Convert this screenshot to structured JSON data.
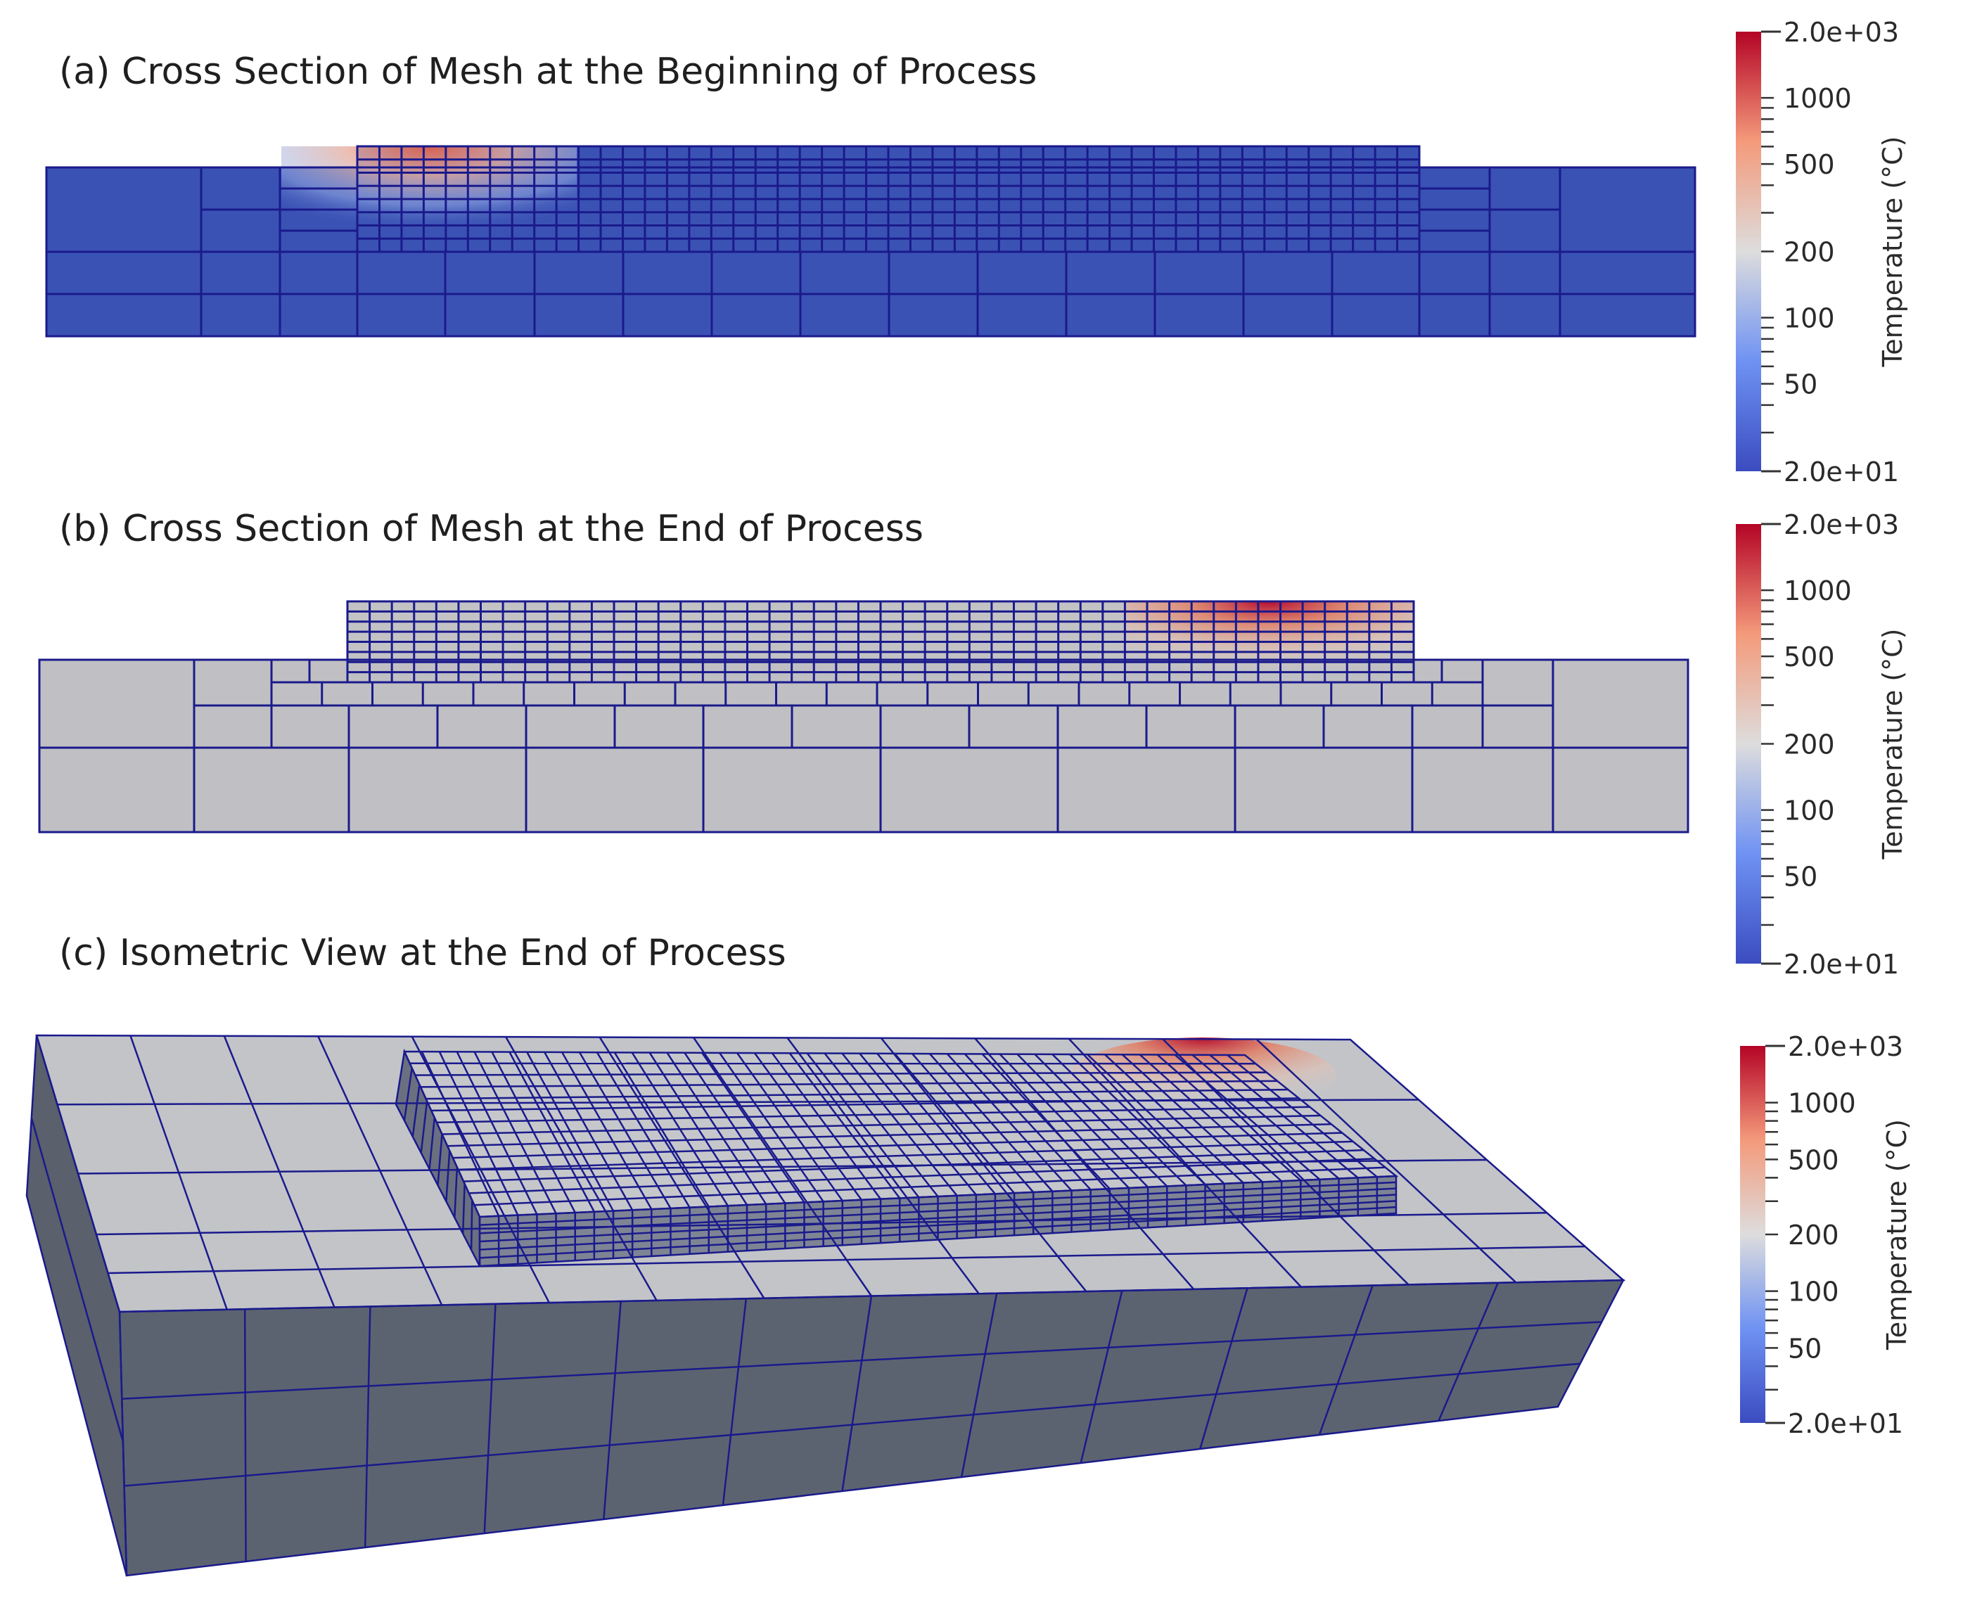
{
  "figure": {
    "panels": [
      {
        "id": "a",
        "title": "(a) Cross Section of Mesh at the Beginning of Process",
        "view": "cross-section",
        "hotspot_location": "upper-left of deposited layer"
      },
      {
        "id": "b",
        "title": "(b) Cross Section of Mesh at the End of Process",
        "view": "cross-section",
        "hotspot_location": "upper-right of deposited layer"
      },
      {
        "id": "c",
        "title": "(c) Isometric View at the End of Process",
        "view": "isometric",
        "hotspot_location": "far-right corner of deposited layer top"
      }
    ],
    "colorbar": {
      "title": "Temperature (°C)",
      "scale": "log",
      "min_label": "2.0e+01",
      "max_label": "2.0e+03",
      "tick_labels": [
        "1000",
        "500",
        "200",
        "100",
        "50"
      ],
      "colors": {
        "low": "#3b4cc0",
        "mid": "#dddddd",
        "high": "#b40426"
      }
    },
    "colorbar_a": {
      "max_label": "2.0e+03",
      "min_label": "2.0e+01",
      "title": "Temperature (°C)"
    },
    "colorbar_b": {
      "max_label": "2.0e+03",
      "min_label": "2.0e+01",
      "title": "Temperature (°C)"
    },
    "colorbar_c": {
      "max_label": "2.0e+03",
      "min_label": "2.0e+01",
      "title": "Temperature (°C)"
    },
    "colors": {
      "mesh_line": "#1a1a8c",
      "cold_fill": "#3a52b4",
      "ambient_fill": "#b8bcc4",
      "side_fill": "#5c6370"
    }
  }
}
